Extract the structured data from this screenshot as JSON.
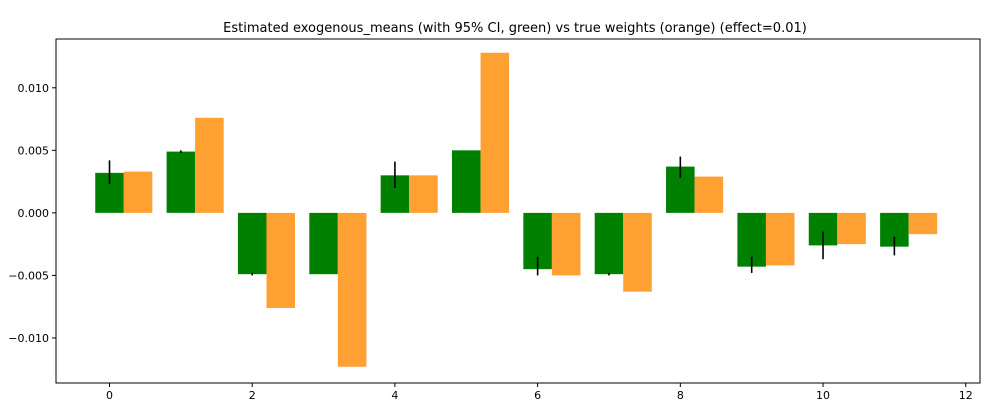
{
  "chart_data": {
    "type": "bar",
    "title": "Estimated exogenous_means (with 95% CI, green) vs true weights (orange) (effect=0.01)",
    "xlabel": "",
    "ylabel": "",
    "x": [
      0,
      1,
      2,
      3,
      4,
      5,
      6,
      7,
      8,
      9,
      10,
      11
    ],
    "xlim": [
      -0.75,
      12.2
    ],
    "ylim": [
      -0.0136,
      0.0139
    ],
    "x_ticks": [
      0,
      2,
      4,
      6,
      8,
      10,
      12
    ],
    "y_ticks": [
      -0.01,
      -0.005,
      0.0,
      0.005,
      0.01
    ],
    "x_tick_labels": [
      "0",
      "2",
      "4",
      "6",
      "8",
      "10",
      "12"
    ],
    "y_tick_labels": [
      "−0.010",
      "−0.005",
      "0.000",
      "0.005",
      "0.010"
    ],
    "grid": false,
    "series": [
      {
        "color": "#008000",
        "values": [
          0.0032,
          0.0049,
          -0.0049,
          -0.0049,
          0.003,
          0.005,
          -0.0045,
          -0.0049,
          0.0037,
          -0.0043,
          -0.0026,
          -0.0027
        ],
        "ci_low": [
          0.0023,
          0.0048,
          -0.005,
          -0.0049,
          0.002,
          0.005,
          -0.005,
          -0.005,
          0.0028,
          -0.0048,
          -0.0037,
          -0.0034
        ],
        "ci_high": [
          0.0042,
          0.005,
          -0.0048,
          -0.0049,
          0.0041,
          0.005,
          -0.0035,
          -0.0048,
          0.0045,
          -0.0035,
          -0.0015,
          -0.0019
        ]
      },
      {
        "color": "#ffa033",
        "values": [
          0.0033,
          0.0076,
          -0.0076,
          -0.0123,
          0.003,
          0.0128,
          -0.005,
          -0.0063,
          0.0029,
          -0.0042,
          -0.0025,
          -0.0017
        ]
      }
    ]
  }
}
